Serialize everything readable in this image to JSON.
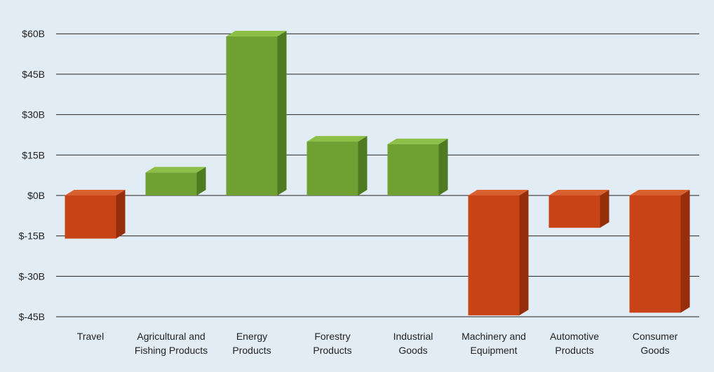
{
  "chart_data": {
    "type": "bar",
    "title": "",
    "xlabel": "",
    "ylabel": "",
    "ylim": [
      -45,
      67
    ],
    "y_ticks": [
      {
        "value": 60,
        "label": "$60B"
      },
      {
        "value": 45,
        "label": "$45B"
      },
      {
        "value": 30,
        "label": "$30B"
      },
      {
        "value": 15,
        "label": "$15B"
      },
      {
        "value": 0,
        "label": "$0B"
      },
      {
        "value": -15,
        "label": "$-15B"
      },
      {
        "value": -30,
        "label": "$-30B"
      },
      {
        "value": -45,
        "label": "$-45B"
      }
    ],
    "grid": true,
    "bar_style": "3d",
    "categories": [
      {
        "lines": [
          "Travel"
        ]
      },
      {
        "lines": [
          "Agricultural and",
          "Fishing Products"
        ]
      },
      {
        "lines": [
          "Energy",
          "Products"
        ]
      },
      {
        "lines": [
          "Forestry",
          "Products"
        ]
      },
      {
        "lines": [
          "Industrial",
          "Goods"
        ]
      },
      {
        "lines": [
          "Machinery and",
          "Equipment"
        ]
      },
      {
        "lines": [
          "Automotive",
          "Products"
        ]
      },
      {
        "lines": [
          "Consumer",
          "Goods"
        ]
      }
    ],
    "values": [
      -16,
      8.5,
      59,
      20,
      19,
      -44.5,
      -12,
      -43.5
    ],
    "colors": {
      "positive": {
        "front": "#6ea032",
        "side": "#4f7a22",
        "top": "#8cbe48"
      },
      "negative": {
        "front": "#c84416",
        "side": "#962e0c",
        "top": "#d8602e"
      },
      "background": "#e2ecf4",
      "gridline": "#222222"
    }
  }
}
